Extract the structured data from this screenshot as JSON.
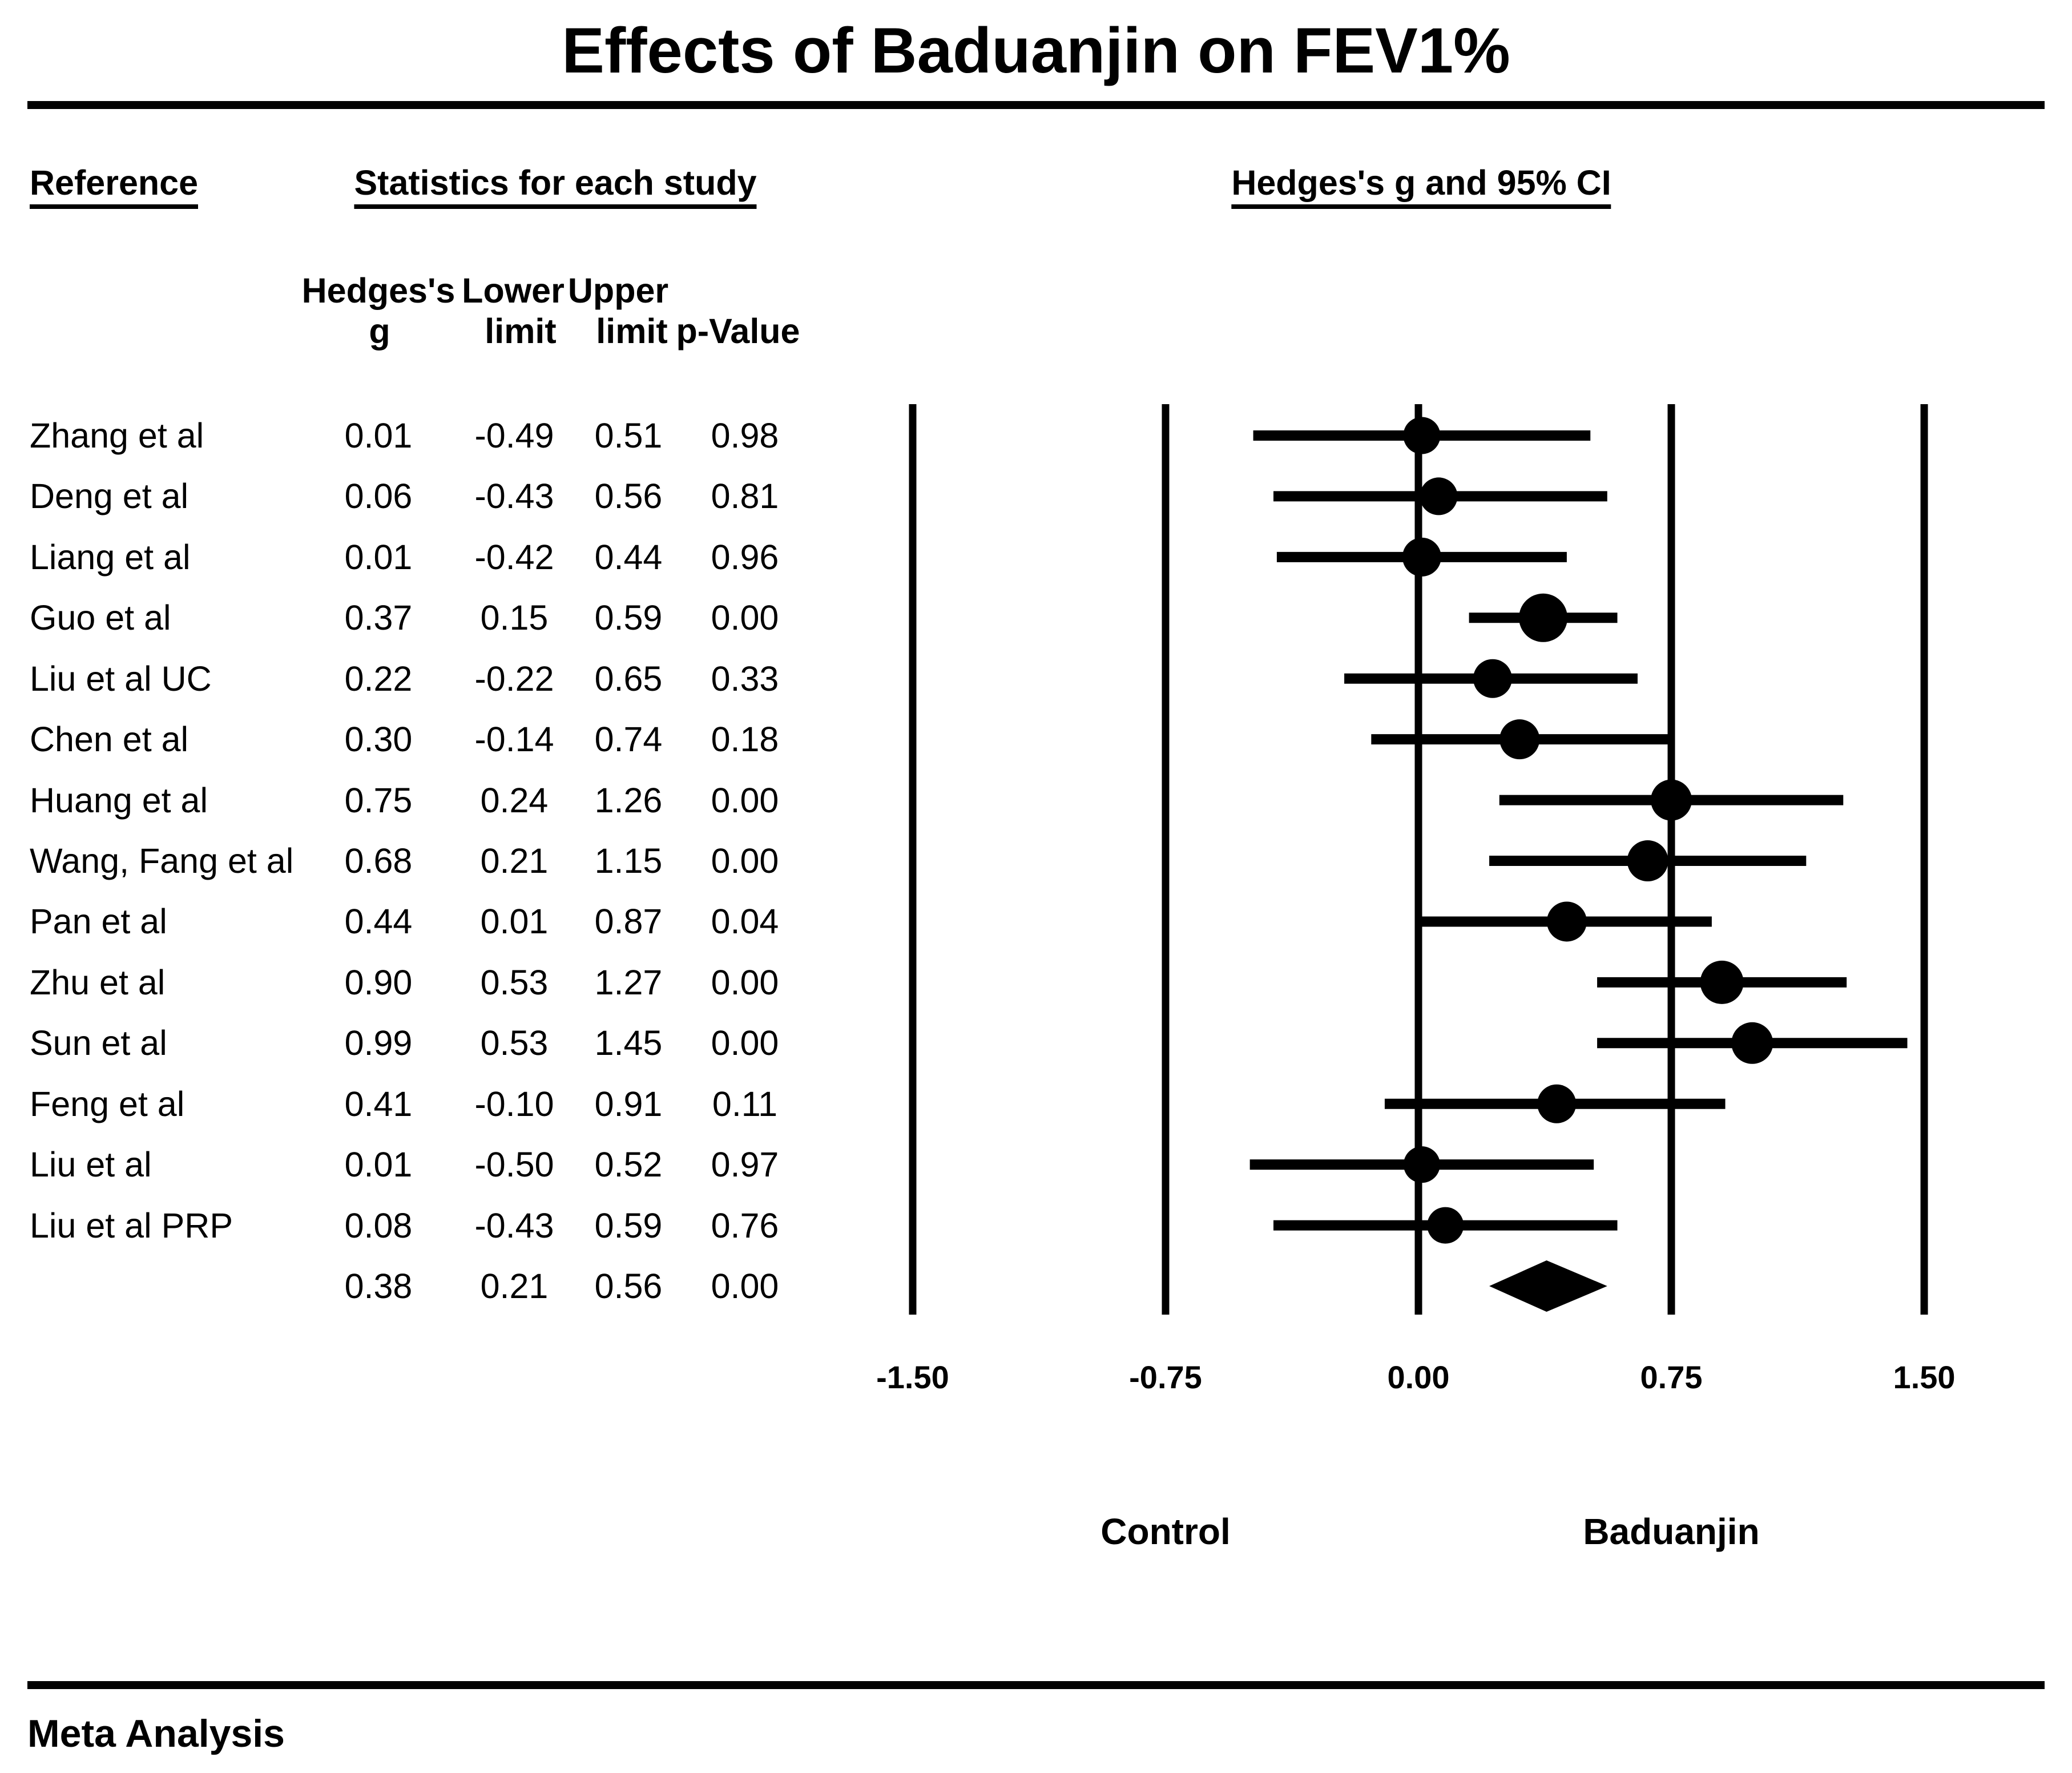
{
  "headers": {
    "reference": "Reference",
    "stats_group": "Statistics for each study",
    "plot_group": "Hedges's g and 95% CI",
    "stat_col_row1": [
      "Hedges's",
      "Lower",
      "Upper"
    ],
    "stat_col_row2": [
      "g",
      "limit",
      "limit",
      "p-Value"
    ]
  },
  "footer": {
    "label": "Meta Analysis"
  },
  "chart_data": {
    "type": "forest",
    "title": "Effects of Baduanjin on FEV1%",
    "effect_measure": "Hedges's g",
    "x_axis": {
      "min": -1.5,
      "max": 1.5,
      "ticks": [
        "-1.50",
        "-0.75",
        "0.00",
        "0.75",
        "1.50"
      ],
      "left_group_label": "Control",
      "right_group_label": "Baduanjin"
    },
    "studies": [
      {
        "name": "Zhang et al",
        "g": "0.01",
        "lower": "-0.49",
        "upper": "0.51",
        "p": "0.98",
        "marker": 65
      },
      {
        "name": "Deng et al",
        "g": "0.06",
        "lower": "-0.43",
        "upper": "0.56",
        "p": "0.81",
        "marker": 66
      },
      {
        "name": "Liang et al",
        "g": "0.01",
        "lower": "-0.42",
        "upper": "0.44",
        "p": "0.96",
        "marker": 68
      },
      {
        "name": "Guo et al",
        "g": "0.37",
        "lower": "0.15",
        "upper": "0.59",
        "p": "0.00",
        "marker": 85
      },
      {
        "name": "Liu et al UC",
        "g": "0.22",
        "lower": "-0.22",
        "upper": "0.65",
        "p": "0.33",
        "marker": 68
      },
      {
        "name": "Chen et al",
        "g": "0.30",
        "lower": "-0.14",
        "upper": "0.74",
        "p": "0.18",
        "marker": 70
      },
      {
        "name": "Huang et al",
        "g": "0.75",
        "lower": "0.24",
        "upper": "1.26",
        "p": "0.00",
        "marker": 72
      },
      {
        "name": "Wang, Fang et al",
        "g": "0.68",
        "lower": "0.21",
        "upper": "1.15",
        "p": "0.00",
        "marker": 72
      },
      {
        "name": "Pan et al",
        "g": "0.44",
        "lower": "0.01",
        "upper": "0.87",
        "p": "0.04",
        "marker": 70
      },
      {
        "name": "Zhu et al",
        "g": "0.90",
        "lower": "0.53",
        "upper": "1.27",
        "p": "0.00",
        "marker": 76
      },
      {
        "name": "Sun et al",
        "g": "0.99",
        "lower": "0.53",
        "upper": "1.45",
        "p": "0.00",
        "marker": 73
      },
      {
        "name": "Feng et al",
        "g": "0.41",
        "lower": "-0.10",
        "upper": "0.91",
        "p": "0.11",
        "marker": 68
      },
      {
        "name": "Liu et al",
        "g": "0.01",
        "lower": "-0.50",
        "upper": "0.52",
        "p": "0.97",
        "marker": 64
      },
      {
        "name": "Liu et al PRP",
        "g": "0.08",
        "lower": "-0.43",
        "upper": "0.59",
        "p": "0.76",
        "marker": 64
      }
    ],
    "summary": {
      "g": "0.38",
      "lower": "0.21",
      "upper": "0.56",
      "p": "0.00"
    }
  }
}
